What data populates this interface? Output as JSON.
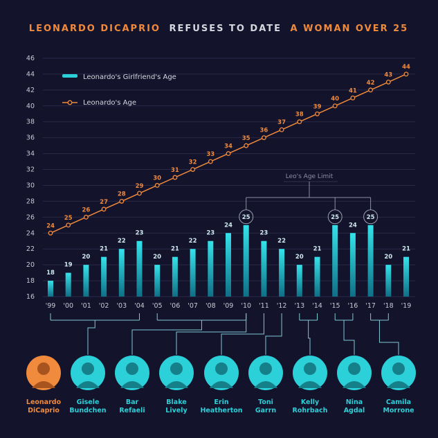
{
  "title": {
    "part1": "LEONARDO DICAPRIO",
    "part2": "REFUSES TO DATE",
    "part3": "A WOMAN OVER 25"
  },
  "colors": {
    "background": "#13132b",
    "accent_orange": "#f08a3c",
    "bar_cyan": "#2bd0d8",
    "grid": "#2a2a48"
  },
  "limit_label": "Leo's Age Limit",
  "chart_data": {
    "type": "bar",
    "categories": [
      "'99",
      "'00",
      "'01",
      "'02",
      "'03",
      "'04",
      "'05",
      "'06",
      "'07",
      "'08",
      "'09",
      "'10",
      "'11",
      "'12",
      "'13",
      "'14",
      "'15",
      "'16",
      "'17",
      "'18",
      "'19"
    ],
    "ylim": [
      16,
      46
    ],
    "yticks": [
      16,
      18,
      20,
      22,
      24,
      26,
      28,
      30,
      32,
      34,
      36,
      38,
      40,
      42,
      44,
      46
    ],
    "grid": true,
    "legend_position": "top-left",
    "series": [
      {
        "name": "Leonardo's Girlfriend's Age",
        "type": "bar",
        "values": [
          18,
          19,
          20,
          21,
          22,
          23,
          20,
          21,
          22,
          23,
          24,
          25,
          23,
          22,
          20,
          21,
          25,
          24,
          25,
          20,
          21
        ]
      },
      {
        "name": "Leonardo's Age",
        "type": "line",
        "values": [
          24,
          25,
          26,
          27,
          28,
          29,
          30,
          31,
          32,
          33,
          34,
          35,
          36,
          37,
          38,
          39,
          40,
          41,
          42,
          43,
          44
        ]
      }
    ],
    "highlighted_values": [
      25
    ]
  },
  "people": [
    {
      "name1": "Leonardo",
      "name2": "DiCaprio",
      "icon": "leonardo-portrait",
      "range": null
    },
    {
      "name1": "Gisele",
      "name2": "Bundchen",
      "icon": "gisele-portrait",
      "range": [
        0,
        5
      ]
    },
    {
      "name1": "Bar",
      "name2": "Refaeli",
      "icon": "bar-portrait",
      "range": [
        6,
        11
      ]
    },
    {
      "name1": "Blake",
      "name2": "Lively",
      "icon": "blake-portrait",
      "range": [
        11,
        11
      ]
    },
    {
      "name1": "Erin",
      "name2": "Heatherton",
      "icon": "erin-portrait",
      "range": [
        12,
        12
      ]
    },
    {
      "name1": "Toni",
      "name2": "Garrn",
      "icon": "toni-portrait",
      "range": [
        13,
        13
      ]
    },
    {
      "name1": "Kelly",
      "name2": "Rohrbach",
      "icon": "kelly-portrait",
      "range": [
        14,
        15
      ]
    },
    {
      "name1": "Nina",
      "name2": "Agdal",
      "icon": "nina-portrait",
      "range": [
        16,
        17
      ]
    },
    {
      "name1": "Camila",
      "name2": "Morrone",
      "icon": "camila-portrait",
      "range": [
        18,
        19
      ]
    }
  ]
}
